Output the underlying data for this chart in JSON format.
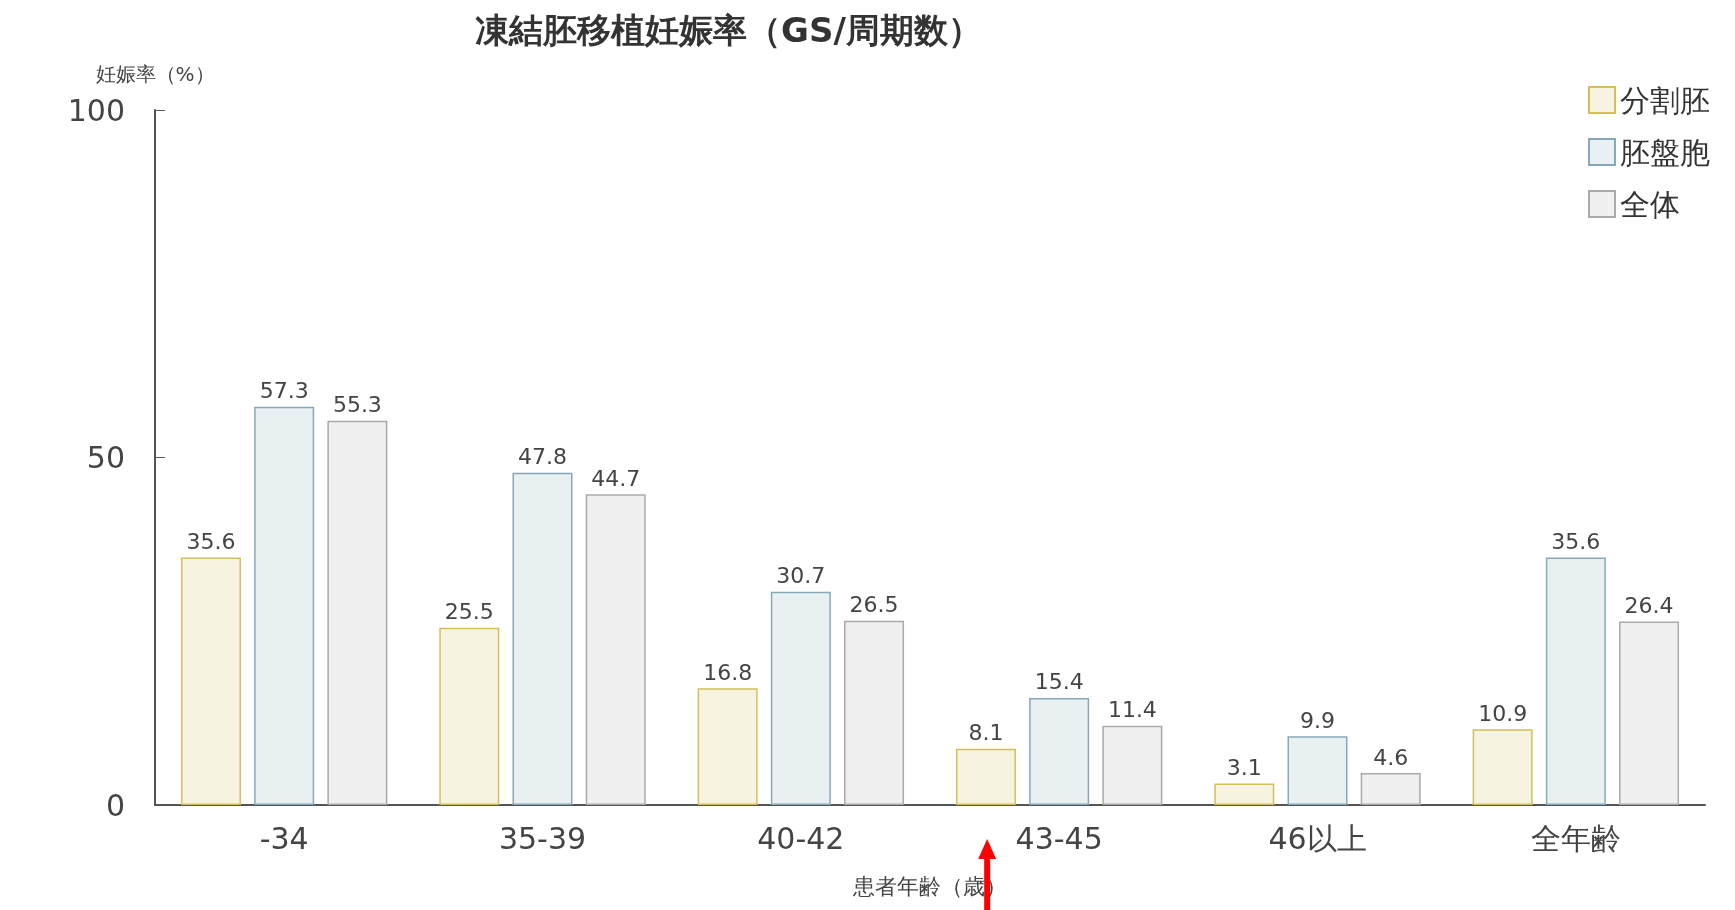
{
  "chart_data": {
    "type": "bar",
    "title": "凍結胚移植妊娠率（GS/周期数）",
    "xlabel": "患者年齢（歳）",
    "ylabel": "妊娠率（%）",
    "categories": [
      "-34",
      "35-39",
      "40-42",
      "43-45",
      "46以上",
      "全年齢"
    ],
    "series": [
      {
        "name": "分割胚",
        "color": "#d4bf5a",
        "values": [
          35.6,
          25.5,
          16.8,
          8.1,
          3.1,
          10.9
        ]
      },
      {
        "name": "胚盤胞",
        "color": "#85a9b9",
        "values": [
          57.3,
          47.8,
          30.7,
          15.4,
          9.9,
          35.6
        ]
      },
      {
        "name": "全体",
        "color": "#aaaaaa",
        "values": [
          55.3,
          44.7,
          26.5,
          11.4,
          4.6,
          26.4
        ]
      }
    ],
    "ylim": [
      0,
      100
    ],
    "yticks": [
      0,
      50,
      100
    ],
    "grid": false,
    "legend": "top right",
    "data_labels": true
  }
}
